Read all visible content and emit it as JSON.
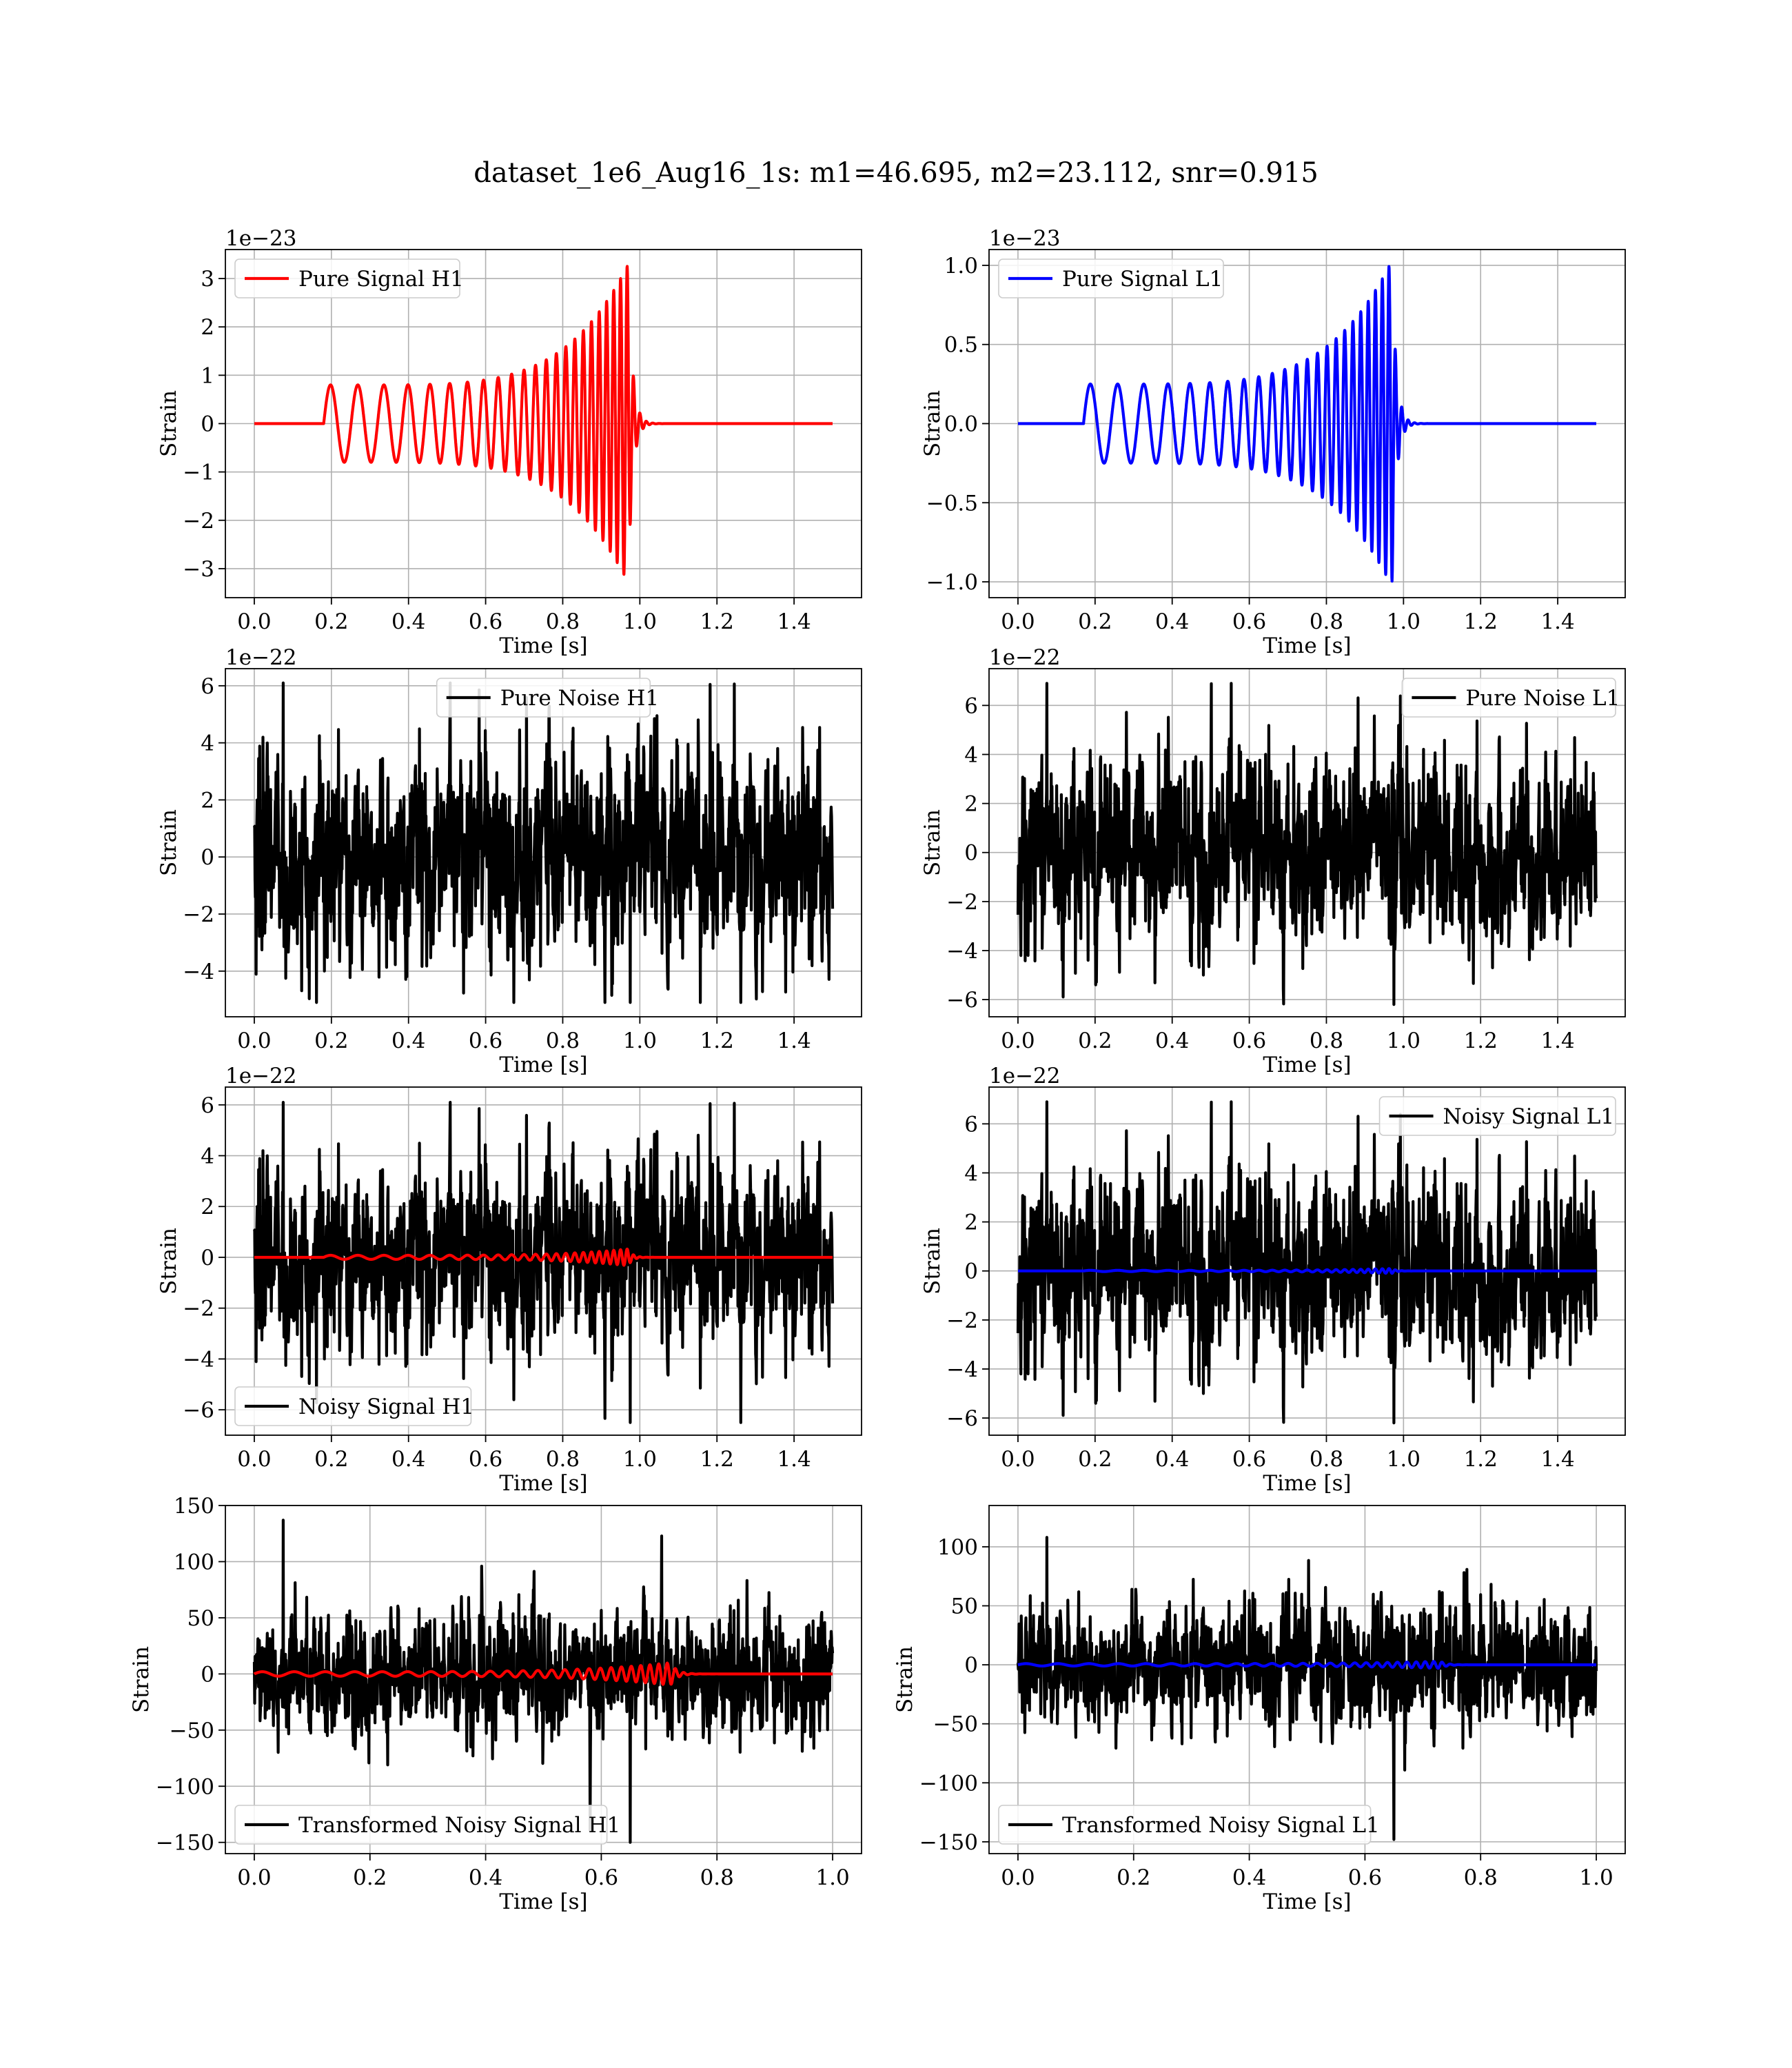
{
  "figure": {
    "title": "dataset_1e6_Aug16_1s: m1=46.695, m2=23.112, snr=0.915"
  },
  "chart_data": [
    {
      "type": "line",
      "panel": "pure-signal-h1",
      "xlabel": "Time [s]",
      "ylabel": "Strain",
      "offset_text": "1e−23",
      "xlim": [
        -0.075,
        1.575
      ],
      "ylim": [
        -3.6,
        3.6
      ],
      "xticks": [
        0.0,
        0.2,
        0.4,
        0.6,
        0.8,
        1.0,
        1.2,
        1.4
      ],
      "xtick_labels": [
        "0.0",
        "0.2",
        "0.4",
        "0.6",
        "0.8",
        "1.0",
        "1.2",
        "1.4"
      ],
      "yticks": [
        3,
        2,
        1,
        0,
        -1,
        -2,
        -3
      ],
      "ytick_labels": [
        "3",
        "2",
        "1",
        "0",
        "−1",
        "−2",
        "−3"
      ],
      "legend": "upper left",
      "series": [
        {
          "name": "Pure Signal H1",
          "color": "#ff0000",
          "waveform": "chirp",
          "t_start": 0.18,
          "t_merger": 0.97,
          "t_end": 1.5,
          "amp_start": 0.8,
          "amp_peak": 3.3,
          "freq_start": 14,
          "freq_end": 60
        }
      ]
    },
    {
      "type": "line",
      "panel": "pure-signal-l1",
      "xlabel": "Time [s]",
      "ylabel": "Strain",
      "offset_text": "1e−23",
      "xlim": [
        -0.075,
        1.575
      ],
      "ylim": [
        -1.1,
        1.1
      ],
      "xticks": [
        0.0,
        0.2,
        0.4,
        0.6,
        0.8,
        1.0,
        1.2,
        1.4
      ],
      "xtick_labels": [
        "0.0",
        "0.2",
        "0.4",
        "0.6",
        "0.8",
        "1.0",
        "1.2",
        "1.4"
      ],
      "yticks": [
        1.0,
        0.5,
        0.0,
        -0.5,
        -1.0
      ],
      "ytick_labels": [
        "1.0",
        "0.5",
        "0.0",
        "−0.5",
        "−1.0"
      ],
      "legend": "upper left",
      "series": [
        {
          "name": "Pure Signal L1",
          "color": "#0000ff",
          "waveform": "chirp",
          "t_start": 0.17,
          "t_merger": 0.97,
          "t_end": 1.5,
          "amp_start": 0.25,
          "amp_peak": 1.03,
          "freq_start": 14,
          "freq_end": 60
        }
      ]
    },
    {
      "type": "line",
      "panel": "pure-noise-h1",
      "xlabel": "Time [s]",
      "ylabel": "Strain",
      "offset_text": "1e−22",
      "xlim": [
        -0.075,
        1.575
      ],
      "ylim": [
        -5.6,
        6.6
      ],
      "xticks": [
        0.0,
        0.2,
        0.4,
        0.6,
        0.8,
        1.0,
        1.2,
        1.4
      ],
      "xtick_labels": [
        "0.0",
        "0.2",
        "0.4",
        "0.6",
        "0.8",
        "1.0",
        "1.2",
        "1.4"
      ],
      "yticks": [
        6,
        4,
        2,
        0,
        -2,
        -4
      ],
      "ytick_labels": [
        "6",
        "4",
        "2",
        "0",
        "−2",
        "−4"
      ],
      "legend": "upper center",
      "series": [
        {
          "name": "Pure Noise H1",
          "color": "#000000",
          "waveform": "noise",
          "t_start": 0.0,
          "t_end": 1.5,
          "seed": 11,
          "min": -5.1,
          "max": 6.1,
          "typical": 3.0
        }
      ]
    },
    {
      "type": "line",
      "panel": "pure-noise-l1",
      "xlabel": "Time [s]",
      "ylabel": "Strain",
      "offset_text": "1e−22",
      "xlim": [
        -0.075,
        1.575
      ],
      "ylim": [
        -6.7,
        7.5
      ],
      "xticks": [
        0.0,
        0.2,
        0.4,
        0.6,
        0.8,
        1.0,
        1.2,
        1.4
      ],
      "xtick_labels": [
        "0.0",
        "0.2",
        "0.4",
        "0.6",
        "0.8",
        "1.0",
        "1.2",
        "1.4"
      ],
      "yticks": [
        6,
        4,
        2,
        0,
        -2,
        -4,
        -6
      ],
      "ytick_labels": [
        "6",
        "4",
        "2",
        "0",
        "−2",
        "−4",
        "−6"
      ],
      "legend": "upper right",
      "series": [
        {
          "name": "Pure Noise L1",
          "color": "#000000",
          "waveform": "noise",
          "t_start": 0.0,
          "t_end": 1.5,
          "seed": 23,
          "min": -6.2,
          "max": 6.9,
          "typical": 3.2
        }
      ]
    },
    {
      "type": "line",
      "panel": "noisy-signal-h1",
      "xlabel": "Time [s]",
      "ylabel": "Strain",
      "offset_text": "1e−22",
      "xlim": [
        -0.075,
        1.575
      ],
      "ylim": [
        -7.0,
        6.7
      ],
      "xticks": [
        0.0,
        0.2,
        0.4,
        0.6,
        0.8,
        1.0,
        1.2,
        1.4
      ],
      "xtick_labels": [
        "0.0",
        "0.2",
        "0.4",
        "0.6",
        "0.8",
        "1.0",
        "1.2",
        "1.4"
      ],
      "yticks": [
        6,
        4,
        2,
        0,
        -2,
        -4,
        -6
      ],
      "ytick_labels": [
        "6",
        "4",
        "2",
        "0",
        "−2",
        "−4",
        "−6"
      ],
      "legend": "lower left",
      "series": [
        {
          "name": "Noisy Signal H1",
          "color": "#000000",
          "waveform": "noise",
          "t_start": 0.0,
          "t_end": 1.5,
          "seed": 11,
          "min": -6.5,
          "max": 6.1,
          "typical": 3.0
        },
        {
          "name": "",
          "color": "#ff0000",
          "waveform": "chirp",
          "t_start": 0.18,
          "t_merger": 0.97,
          "t_end": 1.5,
          "amp_start": 0.08,
          "amp_peak": 0.33,
          "freq_start": 14,
          "freq_end": 60
        }
      ]
    },
    {
      "type": "line",
      "panel": "noisy-signal-l1",
      "xlabel": "Time [s]",
      "ylabel": "Strain",
      "offset_text": "1e−22",
      "xlim": [
        -0.075,
        1.575
      ],
      "ylim": [
        -6.7,
        7.5
      ],
      "xticks": [
        0.0,
        0.2,
        0.4,
        0.6,
        0.8,
        1.0,
        1.2,
        1.4
      ],
      "xtick_labels": [
        "0.0",
        "0.2",
        "0.4",
        "0.6",
        "0.8",
        "1.0",
        "1.2",
        "1.4"
      ],
      "yticks": [
        6,
        4,
        2,
        0,
        -2,
        -4,
        -6
      ],
      "ytick_labels": [
        "6",
        "4",
        "2",
        "0",
        "−2",
        "−4",
        "−6"
      ],
      "legend": "upper right",
      "series": [
        {
          "name": "Noisy Signal L1",
          "color": "#000000",
          "waveform": "noise",
          "t_start": 0.0,
          "t_end": 1.5,
          "seed": 23,
          "min": -6.2,
          "max": 6.9,
          "typical": 3.2
        },
        {
          "name": "",
          "color": "#0000ff",
          "waveform": "chirp",
          "t_start": 0.17,
          "t_merger": 0.97,
          "t_end": 1.5,
          "amp_start": 0.025,
          "amp_peak": 0.1,
          "freq_start": 14,
          "freq_end": 60
        }
      ]
    },
    {
      "type": "line",
      "panel": "transformed-noisy-signal-h1",
      "xlabel": "Time [s]",
      "ylabel": "Strain",
      "offset_text": "",
      "xlim": [
        -0.05,
        1.05
      ],
      "ylim": [
        -160,
        150
      ],
      "xticks": [
        0.0,
        0.2,
        0.4,
        0.6,
        0.8,
        1.0
      ],
      "xtick_labels": [
        "0.0",
        "0.2",
        "0.4",
        "0.6",
        "0.8",
        "1.0"
      ],
      "yticks": [
        150,
        100,
        50,
        0,
        -50,
        -100,
        -150
      ],
      "ytick_labels": [
        "150",
        "100",
        "50",
        "0",
        "−50",
        "−100",
        "−150"
      ],
      "legend": "lower left",
      "series": [
        {
          "name": "Transformed Noisy Signal H1",
          "color": "#000000",
          "waveform": "noise",
          "t_start": 0.0,
          "t_end": 1.0,
          "seed": 37,
          "min": -150,
          "max": 137,
          "typical": 45
        },
        {
          "name": "",
          "color": "#ff0000",
          "waveform": "chirp",
          "t_start": 0.0,
          "t_merger": 0.72,
          "t_end": 1.0,
          "amp_start": 2,
          "amp_peak": 10,
          "freq_start": 18,
          "freq_end": 70
        }
      ]
    },
    {
      "type": "line",
      "panel": "transformed-noisy-signal-l1",
      "xlabel": "Time [s]",
      "ylabel": "Strain",
      "offset_text": "",
      "xlim": [
        -0.05,
        1.05
      ],
      "ylim": [
        -160,
        135
      ],
      "xticks": [
        0.0,
        0.2,
        0.4,
        0.6,
        0.8,
        1.0
      ],
      "xtick_labels": [
        "0.0",
        "0.2",
        "0.4",
        "0.6",
        "0.8",
        "1.0"
      ],
      "yticks": [
        100,
        50,
        0,
        -50,
        -100,
        -150
      ],
      "ytick_labels": [
        "100",
        "50",
        "0",
        "−50",
        "−100",
        "−150"
      ],
      "legend": "lower left",
      "series": [
        {
          "name": "Transformed Noisy Signal L1",
          "color": "#000000",
          "waveform": "noise",
          "t_start": 0.0,
          "t_end": 1.0,
          "seed": 53,
          "min": -148,
          "max": 108,
          "typical": 45
        },
        {
          "name": "",
          "color": "#0000ff",
          "waveform": "chirp",
          "t_start": 0.0,
          "t_merger": 0.73,
          "t_end": 1.0,
          "amp_start": 1,
          "amp_peak": 3,
          "freq_start": 18,
          "freq_end": 70
        }
      ]
    }
  ]
}
